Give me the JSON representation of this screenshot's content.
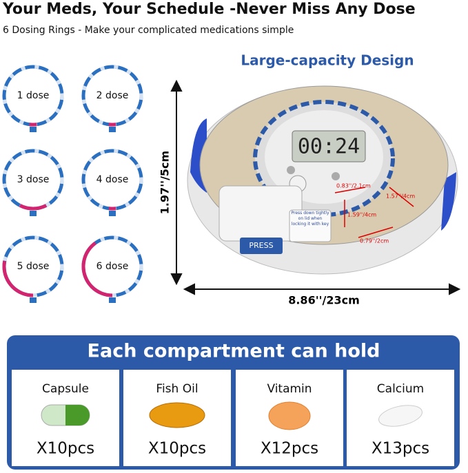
{
  "header": {
    "title": "Your Meds, Your Schedule -Never Miss Any Dose",
    "subtitle": "6 Dosing Rings - Make your complicated medications simple"
  },
  "rings": [
    "1 dose",
    "2 dose",
    "3 dose",
    "4 dose",
    "5 dose",
    "6 dose"
  ],
  "device": {
    "heading": "Large-capacity Design",
    "height": "1.97''/5cm",
    "width": "8.86''/23cm",
    "display": "00:24",
    "button": "PRESS",
    "lid_note": "Press down tightly on lid when locking it with key",
    "compartment_dims": [
      "0.83''/2.1cm",
      "1.57''/4cm",
      "1.59''/4cm",
      "0.79''/2cm"
    ]
  },
  "capacity": {
    "heading": "Each compartment can hold",
    "items": [
      {
        "name": "Capsule",
        "count": "X10pcs"
      },
      {
        "name": "Fish Oil",
        "count": "X10pcs"
      },
      {
        "name": "Vitamin",
        "count": "X12pcs"
      },
      {
        "name": "Calcium",
        "count": "X13pcs"
      }
    ]
  }
}
